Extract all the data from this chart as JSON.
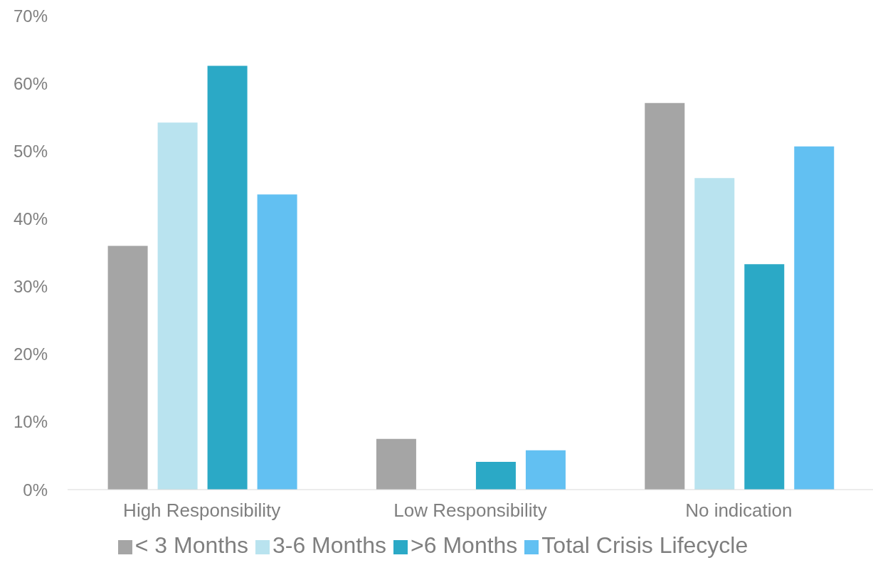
{
  "chart_data": {
    "type": "bar",
    "categories": [
      "High Responsibility",
      "Low Responsibility",
      "No indication"
    ],
    "series": [
      {
        "name": "< 3 Months",
        "color": "#a5a5a5",
        "values": [
          36,
          7.5,
          57.1
        ]
      },
      {
        "name": "3-6 Months",
        "color": "#b9e3ef",
        "values": [
          54.2,
          0,
          46
        ]
      },
      {
        "name": ">6 Months",
        "color": "#2ba9c6",
        "values": [
          62.6,
          4.1,
          33.3
        ]
      },
      {
        "name": "Total Crisis Lifecycle",
        "color": "#62c0f2",
        "values": [
          43.6,
          5.8,
          50.7
        ]
      }
    ],
    "ylim": [
      0,
      70
    ],
    "yticks": [
      {
        "value": 0,
        "label": "0%"
      },
      {
        "value": 10,
        "label": "10%"
      },
      {
        "value": 20,
        "label": "20%"
      },
      {
        "value": 30,
        "label": "30%"
      },
      {
        "value": 40,
        "label": "40%"
      },
      {
        "value": 50,
        "label": "50%"
      },
      {
        "value": 60,
        "label": "60%"
      },
      {
        "value": 70,
        "label": "70%"
      }
    ],
    "grid": false,
    "legend": "bottom"
  }
}
